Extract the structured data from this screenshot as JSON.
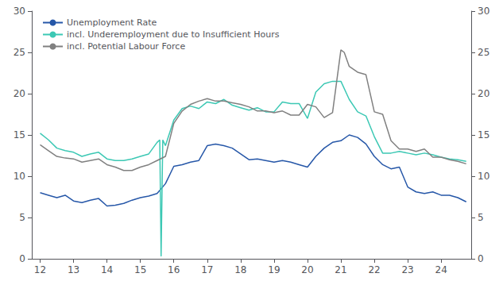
{
  "chart_data": {
    "type": "line",
    "xlim": [
      11.75,
      24.9
    ],
    "xticks": [
      12,
      13,
      14,
      15,
      16,
      17,
      18,
      19,
      20,
      21,
      22,
      23,
      24
    ],
    "ylim": [
      0,
      30
    ],
    "yticks": [
      0,
      5,
      10,
      15,
      20,
      25,
      30
    ],
    "y2lim": [
      0,
      30
    ],
    "y2ticks": [
      0,
      5,
      10,
      15,
      20,
      25,
      30
    ],
    "grid": false,
    "legend": "upper left",
    "series": [
      {
        "name": "Unemployment Rate",
        "color": "#2657a8",
        "x": [
          12.0,
          12.25,
          12.5,
          12.75,
          13.0,
          13.25,
          13.5,
          13.75,
          14.0,
          14.25,
          14.5,
          14.75,
          15.0,
          15.25,
          15.5,
          15.75,
          16.0,
          16.25,
          16.5,
          16.75,
          17.0,
          17.25,
          17.5,
          17.75,
          18.0,
          18.25,
          18.5,
          18.75,
          19.0,
          19.25,
          19.5,
          19.75,
          20.0,
          20.25,
          20.5,
          20.75,
          21.0,
          21.25,
          21.5,
          21.75,
          22.0,
          22.25,
          22.5,
          22.75,
          23.0,
          23.25,
          23.5,
          23.75,
          24.0,
          24.25,
          24.5,
          24.75
        ],
        "values": [
          8.0,
          7.7,
          7.4,
          7.7,
          7.0,
          6.8,
          7.1,
          7.3,
          6.4,
          6.5,
          6.7,
          7.1,
          7.4,
          7.6,
          7.9,
          9.1,
          11.2,
          11.4,
          11.7,
          11.9,
          13.7,
          13.9,
          13.7,
          13.4,
          12.7,
          12.0,
          12.1,
          11.9,
          11.7,
          11.9,
          11.7,
          11.4,
          11.1,
          12.4,
          13.4,
          14.1,
          14.3,
          15.0,
          14.7,
          13.9,
          12.4,
          11.4,
          10.9,
          11.1,
          8.7,
          8.1,
          7.9,
          8.1,
          7.7,
          7.7,
          7.4,
          6.9
        ]
      },
      {
        "name": "incl. Underemployment due to Insufficient Hours",
        "color": "#3cc8b4",
        "x": [
          12.0,
          12.25,
          12.5,
          12.75,
          13.0,
          13.25,
          13.5,
          13.75,
          14.0,
          14.25,
          14.5,
          14.75,
          15.0,
          15.25,
          15.5,
          15.58,
          15.62,
          15.67,
          15.75,
          16.0,
          16.25,
          16.5,
          16.75,
          17.0,
          17.25,
          17.5,
          17.75,
          18.0,
          18.25,
          18.5,
          18.75,
          19.0,
          19.25,
          19.5,
          19.75,
          20.0,
          20.25,
          20.5,
          20.75,
          21.0,
          21.25,
          21.5,
          21.75,
          22.0,
          22.25,
          22.5,
          22.75,
          23.0,
          23.25,
          23.5,
          23.75,
          24.0,
          24.25,
          24.5,
          24.75
        ],
        "values": [
          15.2,
          14.4,
          13.4,
          13.1,
          12.9,
          12.4,
          12.7,
          12.9,
          12.1,
          11.9,
          11.9,
          12.1,
          12.4,
          12.7,
          14.1,
          14.4,
          0.3,
          14.4,
          13.7,
          16.8,
          18.2,
          18.5,
          18.2,
          19.0,
          18.8,
          19.3,
          18.6,
          18.3,
          18.0,
          18.3,
          17.8,
          17.8,
          19.0,
          18.8,
          18.8,
          17.0,
          20.2,
          21.2,
          21.5,
          21.5,
          19.3,
          17.8,
          17.3,
          14.8,
          12.8,
          12.8,
          13.0,
          12.8,
          12.6,
          12.8,
          12.6,
          12.3,
          12.1,
          12.0,
          11.8
        ]
      },
      {
        "name": "incl. Potential Labour Force",
        "color": "#808080",
        "x": [
          12.0,
          12.25,
          12.5,
          12.75,
          13.0,
          13.25,
          13.5,
          13.75,
          14.0,
          14.25,
          14.5,
          14.75,
          15.0,
          15.25,
          15.5,
          15.75,
          16.0,
          16.25,
          16.5,
          16.75,
          17.0,
          17.25,
          17.5,
          17.75,
          18.0,
          18.25,
          18.5,
          18.75,
          19.0,
          19.25,
          19.5,
          19.75,
          20.0,
          20.25,
          20.5,
          20.75,
          21.0,
          21.1,
          21.25,
          21.5,
          21.75,
          22.0,
          22.25,
          22.5,
          22.75,
          23.0,
          23.25,
          23.5,
          23.75,
          24.0,
          24.25,
          24.5,
          24.75
        ],
        "values": [
          13.8,
          13.1,
          12.4,
          12.2,
          12.1,
          11.7,
          11.9,
          12.1,
          11.4,
          11.1,
          10.7,
          10.7,
          11.1,
          11.4,
          11.9,
          12.4,
          16.4,
          17.9,
          18.7,
          19.1,
          19.4,
          19.1,
          19.1,
          18.9,
          18.7,
          18.4,
          17.9,
          17.9,
          17.7,
          17.9,
          17.4,
          17.4,
          18.7,
          18.4,
          17.1,
          17.7,
          25.3,
          25.0,
          23.3,
          22.6,
          22.3,
          17.8,
          17.5,
          14.3,
          13.3,
          13.3,
          13.0,
          13.3,
          12.3,
          12.3,
          12.0,
          11.8,
          11.5
        ]
      }
    ]
  }
}
